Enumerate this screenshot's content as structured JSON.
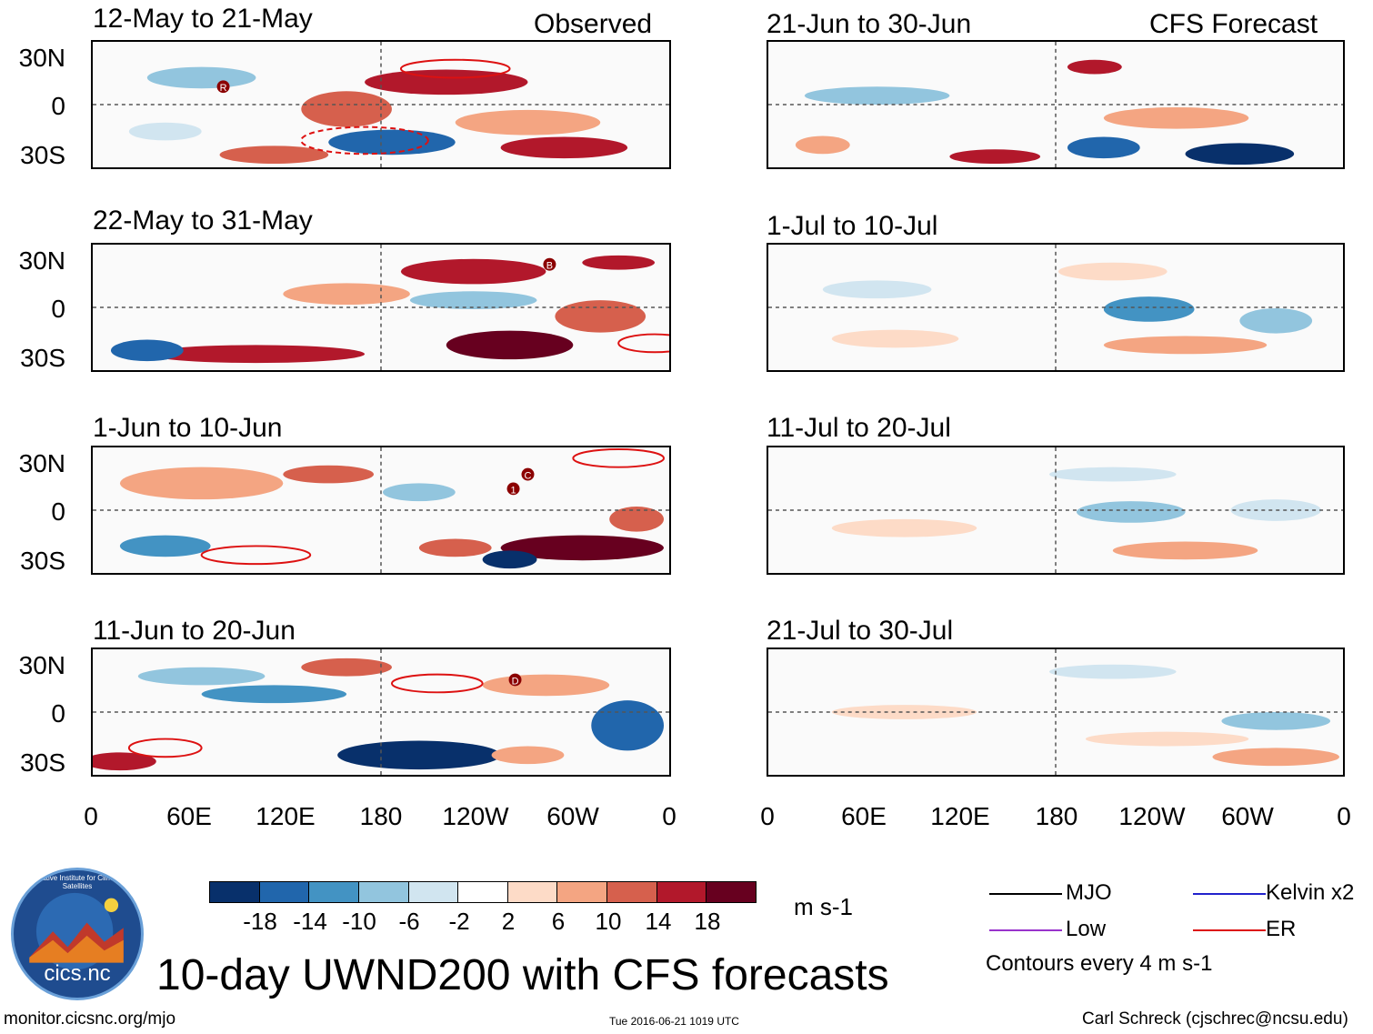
{
  "header": {
    "left_column_label": "Observed",
    "right_column_label": "CFS Forecast"
  },
  "panels": {
    "observed": [
      {
        "period": "12-May to 21-May"
      },
      {
        "period": "22-May to 31-May"
      },
      {
        "period": "1-Jun to 10-Jun"
      },
      {
        "period": "11-Jun to 20-Jun"
      }
    ],
    "forecast": [
      {
        "period": "21-Jun to 30-Jun"
      },
      {
        "period": "1-Jul to 10-Jul"
      },
      {
        "period": "11-Jul to 20-Jul"
      },
      {
        "period": "21-Jul to 30-Jul"
      }
    ]
  },
  "axes": {
    "lat_labels": [
      "30N",
      "0",
      "30S"
    ],
    "lon_labels": [
      "0",
      "60E",
      "120E",
      "180",
      "120W",
      "60W",
      "0"
    ]
  },
  "markers": {
    "observed_0": "R",
    "observed_1": "B",
    "observed_2_a": "C",
    "observed_2_b": "1",
    "observed_3": "D"
  },
  "colorbar": {
    "unit": "m s-1",
    "ticks": [
      "-18",
      "-14",
      "-10",
      "-6",
      "-2",
      "2",
      "6",
      "10",
      "14",
      "18"
    ],
    "colors": [
      "#08306b",
      "#2166ac",
      "#4393c3",
      "#92c5de",
      "#d1e5f0",
      "#ffffff",
      "#fddbc7",
      "#f4a582",
      "#d6604d",
      "#b2182b",
      "#67001f"
    ]
  },
  "legend": {
    "mjo": "MJO",
    "kelvin": "Kelvin x2",
    "low": "Low",
    "er": "ER",
    "contour_note": "Contours every 4 m s-1",
    "colors": {
      "mjo": "#000000",
      "kelvin": "#2222cc",
      "low": "#9933cc",
      "er": "#dd1111"
    }
  },
  "title": "10-day UWND200 with CFS forecasts",
  "logo_text": "cics.nc",
  "logo_ring_text": "Cooperative Institute for Climate and Satellites",
  "footer": {
    "website": "monitor.cicsnc.org/mjo",
    "timestamp": "Tue 2016-06-21 1019 UTC",
    "author": "Carl Schreck (cjschrec@ncsu.edu)"
  }
}
